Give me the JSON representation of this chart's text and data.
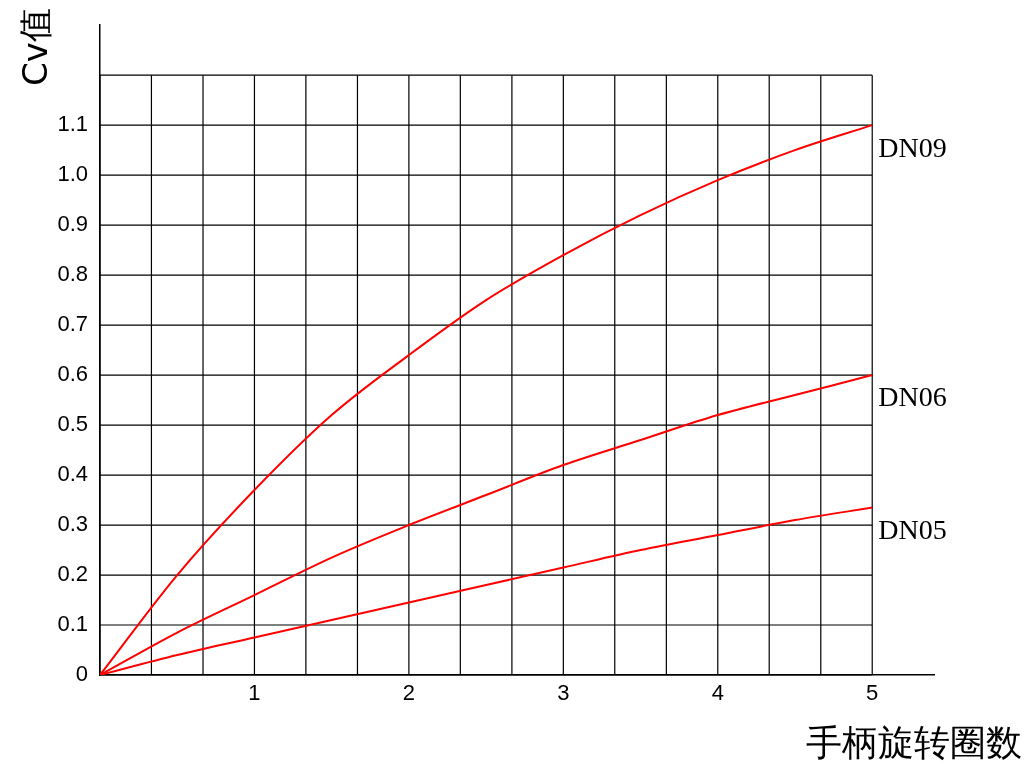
{
  "chart_data": {
    "type": "line",
    "xlabel": "手柄旋转圈数",
    "ylabel": "Cv值",
    "x": [
      0,
      0.5,
      1,
      1.5,
      2,
      2.5,
      3,
      3.5,
      4,
      4.5,
      5
    ],
    "series": [
      {
        "name": "DN09",
        "color": "#ff0000",
        "values": [
          0,
          0.2,
          0.37,
          0.52,
          0.64,
          0.75,
          0.84,
          0.92,
          0.99,
          1.05,
          1.1
        ]
      },
      {
        "name": "DN06",
        "color": "#ff0000",
        "values": [
          0,
          0.085,
          0.16,
          0.235,
          0.3,
          0.36,
          0.42,
          0.47,
          0.52,
          0.56,
          0.6
        ]
      },
      {
        "name": "DN05",
        "color": "#ff0000",
        "values": [
          0,
          0.04,
          0.075,
          0.11,
          0.145,
          0.18,
          0.215,
          0.25,
          0.28,
          0.31,
          0.335
        ]
      }
    ],
    "xlim": [
      0,
      5.4
    ],
    "ylim": [
      0,
      1.3
    ],
    "xticks": [
      {
        "value": 0,
        "label": null
      },
      {
        "value": 0.333,
        "label": null
      },
      {
        "value": 0.667,
        "label": null
      },
      1,
      {
        "value": 1.333,
        "label": null
      },
      {
        "value": 1.667,
        "label": null
      },
      2,
      {
        "value": 2.333,
        "label": null
      },
      {
        "value": 2.667,
        "label": null
      },
      3,
      {
        "value": 3.333,
        "label": null
      },
      {
        "value": 3.667,
        "label": null
      },
      4,
      {
        "value": 4.333,
        "label": null
      },
      {
        "value": 4.667,
        "label": null
      },
      5
    ],
    "yticks": [
      0,
      0.1,
      0.2,
      0.3,
      0.4,
      0.5,
      0.6,
      0.7,
      0.8,
      0.9,
      {
        "value": 1.0,
        "label": "1.0"
      },
      1.1,
      {
        "value": 1.2,
        "label": null
      }
    ],
    "grid": true,
    "legend": false,
    "marker": "none",
    "line_style": "solid"
  }
}
